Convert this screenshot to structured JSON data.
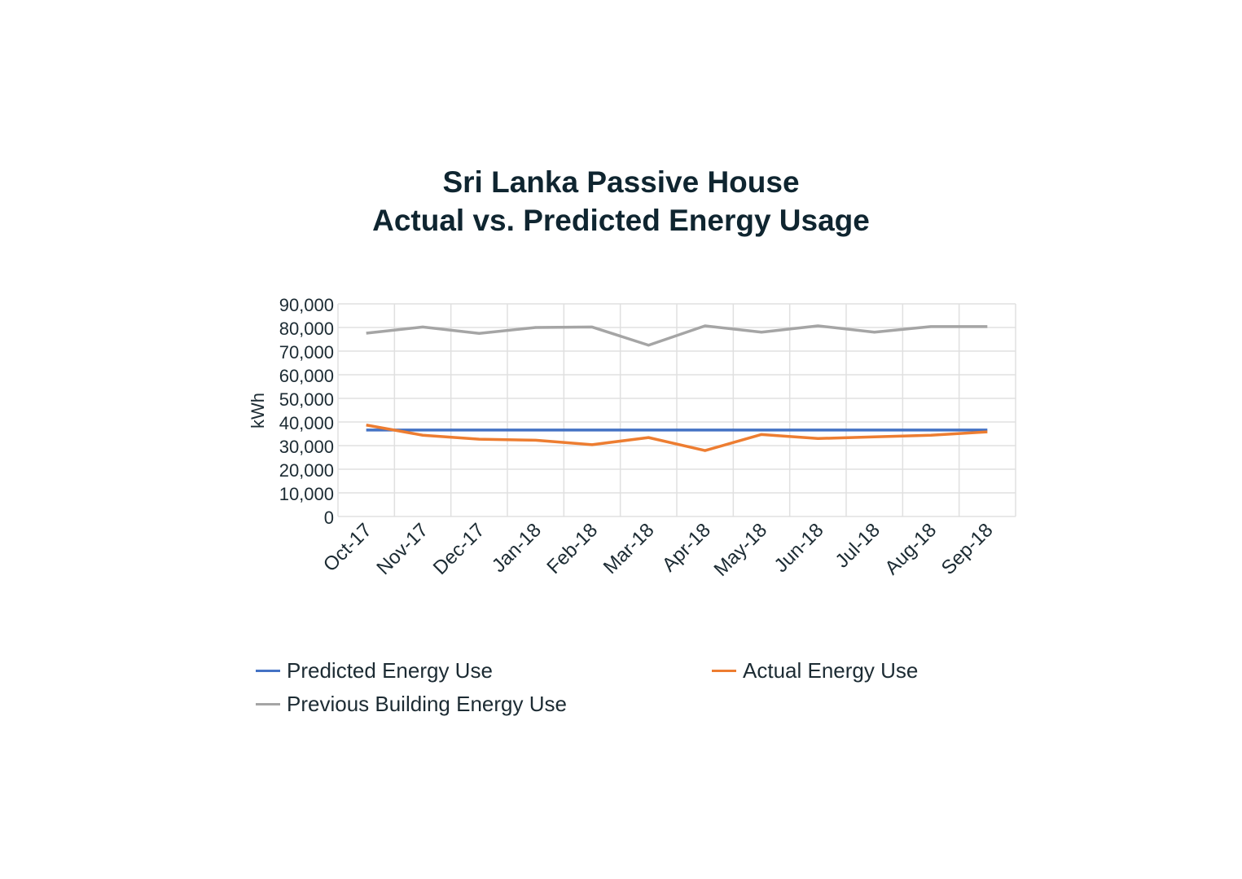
{
  "chart_data": {
    "type": "line",
    "title_line1": "Sri Lanka Passive House",
    "title_line2": "Actual vs. Predicted Energy Usage",
    "xlabel": "",
    "ylabel": "kWh",
    "ylim": [
      0,
      90000
    ],
    "yticks": [
      "0",
      "10,000",
      "20,000",
      "30,000",
      "40,000",
      "50,000",
      "60,000",
      "70,000",
      "80,000",
      "90,000"
    ],
    "categories": [
      "Oct-17",
      "Nov-17",
      "Dec-17",
      "Jan-18",
      "Feb-18",
      "Mar-18",
      "Apr-18",
      "May-18",
      "Jun-18",
      "Jul-18",
      "Aug-18",
      "Sep-18"
    ],
    "grid": true,
    "legend_position": "bottom",
    "series": [
      {
        "name": "Predicted Energy Use",
        "color": "#4472c4",
        "values": [
          36600,
          36600,
          36600,
          36600,
          36600,
          36600,
          36600,
          36600,
          36600,
          36600,
          36600,
          36600
        ]
      },
      {
        "name": "Actual Energy Use",
        "color": "#ed7d31",
        "values": [
          38700,
          34400,
          32700,
          32300,
          30400,
          33400,
          27900,
          34700,
          33000,
          33700,
          34400,
          35800
        ]
      },
      {
        "name": "Previous Building Energy Use",
        "color": "#a5a5a5",
        "values": [
          77600,
          80200,
          77500,
          80000,
          80200,
          72500,
          80700,
          78000,
          80700,
          78000,
          80400,
          80400
        ]
      }
    ]
  }
}
